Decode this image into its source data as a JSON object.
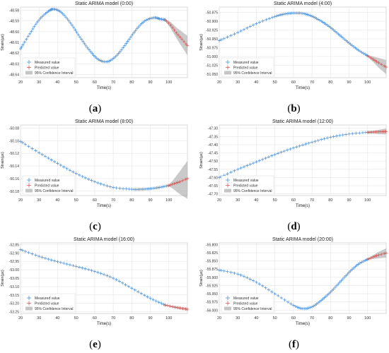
{
  "chart_data": [
    {
      "type": "scatter",
      "caption": "a",
      "title": "Static ARIMA model (0:00)",
      "xlabel": "Time(s)",
      "ylabel": "Strain(με)",
      "xlim": [
        20,
        110
      ],
      "ylim": [
        -48.643,
        -48.577
      ],
      "xticks": [
        20,
        30,
        40,
        50,
        60,
        70,
        80,
        90,
        100
      ],
      "yticks": [
        -48.58,
        -48.59,
        -48.6,
        -48.61,
        -48.62,
        -48.63,
        -48.64
      ],
      "ytick_labels": [
        "-48.58",
        "-48.59",
        "-48.60",
        "-48.61",
        "-48.62",
        "-48.63",
        "-48.64"
      ],
      "legend_position": "bottom-left",
      "legend": [
        "Measured value",
        "Predicted value",
        "95% Confidence Interval"
      ],
      "series": [
        {
          "name": "Measured value",
          "color": "#4a90d9",
          "x": [
            20,
            25,
            30,
            35,
            38,
            42,
            47,
            52,
            57,
            62,
            67,
            72,
            77,
            82,
            87,
            92,
            95,
            98
          ],
          "y": [
            -48.616,
            -48.602,
            -48.589,
            -48.581,
            -48.579,
            -48.582,
            -48.592,
            -48.605,
            -48.617,
            -48.626,
            -48.628,
            -48.622,
            -48.611,
            -48.599,
            -48.59,
            -48.587,
            -48.588,
            -48.589
          ]
        },
        {
          "name": "Predicted value",
          "color": "#d9534f",
          "x": [
            98,
            101,
            104,
            107,
            110
          ],
          "y": [
            -48.589,
            -48.594,
            -48.601,
            -48.607,
            -48.613
          ]
        }
      ],
      "confidence_interval": {
        "x": [
          98,
          101,
          104,
          107,
          110
        ],
        "lower": [
          -48.59,
          -48.597,
          -48.606,
          -48.614,
          -48.622
        ],
        "upper": [
          -48.588,
          -48.591,
          -48.596,
          -48.6,
          -48.604
        ]
      }
    },
    {
      "type": "scatter",
      "caption": "b",
      "title": "Static ARIMA model (4:00)",
      "xlabel": "Time(s)",
      "ylabel": "Strain(με)",
      "xlim": [
        20,
        110
      ],
      "ylim": [
        -51.06,
        -50.86
      ],
      "xticks": [
        20,
        30,
        40,
        50,
        60,
        70,
        80,
        90,
        100
      ],
      "yticks": [
        -50.875,
        -50.9,
        -50.925,
        -50.95,
        -50.975,
        -51.0,
        -51.025,
        -51.05
      ],
      "ytick_labels": [
        "-50.875",
        "-50.900",
        "-50.925",
        "-50.950",
        "-50.975",
        "-51.000",
        "-51.025",
        "-51.050"
      ],
      "legend_position": "bottom-left",
      "legend": [
        "Measured value",
        "Predicted value",
        "95% Confidence Interval"
      ],
      "series": [
        {
          "name": "Measured value",
          "color": "#4a90d9",
          "x": [
            20,
            30,
            40,
            50,
            55,
            60,
            65,
            70,
            75,
            80,
            85,
            90,
            95,
            100
          ],
          "y": [
            -50.955,
            -50.932,
            -50.907,
            -50.887,
            -50.88,
            -50.877,
            -50.878,
            -50.886,
            -50.9,
            -50.918,
            -50.94,
            -50.962,
            -50.982,
            -50.998
          ]
        },
        {
          "name": "Predicted value",
          "color": "#d9534f",
          "x": [
            100,
            103,
            106,
            110
          ],
          "y": [
            -50.998,
            -51.008,
            -51.018,
            -51.03
          ]
        }
      ],
      "confidence_interval": {
        "x": [
          100,
          103,
          106,
          110
        ],
        "lower": [
          -51.0,
          -51.016,
          -51.032,
          -51.05
        ],
        "upper": [
          -50.996,
          -51.0,
          -51.004,
          -51.01
        ]
      }
    },
    {
      "type": "scatter",
      "caption": "c",
      "title": "Static ARIMA model (8:00)",
      "xlabel": "Time(s)",
      "ylabel": "Strain(με)",
      "xlim": [
        20,
        110
      ],
      "ylim": [
        -50.187,
        -50.075
      ],
      "xticks": [
        20,
        30,
        40,
        50,
        60,
        70,
        80,
        90,
        100
      ],
      "yticks": [
        -50.08,
        -50.1,
        -50.12,
        -50.14,
        -50.16,
        -50.18
      ],
      "ytick_labels": [
        "-50.08",
        "-50.10",
        "-50.12",
        "-50.14",
        "-50.16",
        "-50.18"
      ],
      "legend_position": "bottom-left",
      "legend": [
        "Measured value",
        "Predicted value",
        "95% Confidence Interval"
      ],
      "series": [
        {
          "name": "Measured value",
          "color": "#4a90d9",
          "x": [
            20,
            30,
            40,
            50,
            60,
            70,
            80,
            85,
            90,
            95,
            100
          ],
          "y": [
            -50.101,
            -50.119,
            -50.136,
            -50.152,
            -50.165,
            -50.174,
            -50.177,
            -50.177,
            -50.176,
            -50.174,
            -50.171
          ]
        },
        {
          "name": "Predicted value",
          "color": "#d9534f",
          "x": [
            100,
            103,
            106,
            110
          ],
          "y": [
            -50.171,
            -50.168,
            -50.165,
            -50.16
          ]
        }
      ],
      "confidence_interval": {
        "x": [
          100,
          103,
          106,
          110
        ],
        "lower": [
          -50.172,
          -50.178,
          -50.185,
          -50.192
        ],
        "upper": [
          -50.17,
          -50.16,
          -50.148,
          -50.132
        ]
      }
    },
    {
      "type": "scatter",
      "caption": "d",
      "title": "Static ARIMA model (12:00)",
      "xlabel": "Time(s)",
      "ylabel": "Strain(με)",
      "xlim": [
        20,
        110
      ],
      "ylim": [
        -47.71,
        -47.28
      ],
      "xticks": [
        20,
        30,
        40,
        50,
        60,
        70,
        80,
        90,
        100
      ],
      "yticks": [
        -47.3,
        -47.35,
        -47.4,
        -47.45,
        -47.5,
        -47.55,
        -47.6,
        -47.65,
        -47.7
      ],
      "ytick_labels": [
        "-47.30",
        "-47.35",
        "-47.40",
        "-47.45",
        "-47.50",
        "-47.55",
        "-47.60",
        "-47.65",
        "-47.70"
      ],
      "legend_position": "bottom-left",
      "legend": [
        "Measured value",
        "Predicted value",
        "95% Confidence Interval"
      ],
      "series": [
        {
          "name": "Measured value",
          "color": "#4a90d9",
          "x": [
            20,
            30,
            40,
            50,
            60,
            70,
            80,
            90,
            100
          ],
          "y": [
            -47.6,
            -47.55,
            -47.505,
            -47.46,
            -47.42,
            -47.385,
            -47.355,
            -47.335,
            -47.325
          ]
        },
        {
          "name": "Predicted value",
          "color": "#d9534f",
          "x": [
            100,
            105,
            110
          ],
          "y": [
            -47.325,
            -47.322,
            -47.32
          ]
        }
      ],
      "confidence_interval": {
        "x": [
          100,
          105,
          110
        ],
        "lower": [
          -47.33,
          -47.334,
          -47.338
        ],
        "upper": [
          -47.32,
          -47.311,
          -47.302
        ]
      }
    },
    {
      "type": "scatter",
      "caption": "e",
      "title": "Static ARIMA model (16:00)",
      "xlabel": "Time(s)",
      "ylabel": "Strain(με)",
      "xlim": [
        20,
        110
      ],
      "ylim": [
        -53.26,
        -52.84
      ],
      "xticks": [
        20,
        30,
        40,
        50,
        60,
        70,
        80,
        90,
        100
      ],
      "yticks": [
        -52.85,
        -52.9,
        -52.95,
        -53.0,
        -53.05,
        -53.1,
        -53.15,
        -53.2,
        -53.25
      ],
      "ytick_labels": [
        "-52.85",
        "-52.90",
        "-52.95",
        "-53.00",
        "-53.05",
        "-53.10",
        "-53.15",
        "-53.20",
        "-53.25"
      ],
      "legend_position": "bottom-left",
      "legend": [
        "Measured value",
        "Predicted value",
        "95% Confidence Interval"
      ],
      "series": [
        {
          "name": "Measured value",
          "color": "#4a90d9",
          "x": [
            20,
            30,
            40,
            50,
            60,
            70,
            80,
            90,
            98
          ],
          "y": [
            -52.88,
            -52.92,
            -52.952,
            -52.98,
            -53.01,
            -53.05,
            -53.11,
            -53.17,
            -53.21
          ]
        },
        {
          "name": "Predicted value",
          "color": "#d9534f",
          "x": [
            98,
            102,
            106,
            110
          ],
          "y": [
            -53.21,
            -53.22,
            -53.228,
            -53.235
          ]
        }
      ],
      "confidence_interval": {
        "x": [
          98,
          102,
          106,
          110
        ],
        "lower": [
          -53.212,
          -53.225,
          -53.236,
          -53.245
        ],
        "upper": [
          -53.208,
          -53.215,
          -53.22,
          -53.225
        ]
      }
    },
    {
      "type": "scatter",
      "caption": "f",
      "title": "Static ARIMA model (20:00)",
      "xlabel": "Time(s)",
      "ylabel": "Strain(με)",
      "xlim": [
        20,
        110
      ],
      "ylim": [
        -56.01,
        -55.795
      ],
      "xticks": [
        20,
        30,
        40,
        50,
        60,
        70,
        80,
        90,
        100
      ],
      "yticks": [
        -55.8,
        -55.825,
        -55.85,
        -55.875,
        -55.9,
        -55.925,
        -55.95,
        -55.975,
        -56.0
      ],
      "ytick_labels": [
        "-55.800",
        "-55.825",
        "-55.850",
        "-55.875",
        "-55.900",
        "-55.925",
        "-55.950",
        "-55.975",
        "-56.000"
      ],
      "legend_position": "bottom-left",
      "legend": [
        "Measured value",
        "Predicted value",
        "95% Confidence Interval"
      ],
      "series": [
        {
          "name": "Measured value",
          "color": "#4a90d9",
          "x": [
            20,
            30,
            40,
            50,
            60,
            65,
            70,
            75,
            80,
            85,
            90,
            95,
            100
          ],
          "y": [
            -55.878,
            -55.89,
            -55.915,
            -55.95,
            -55.985,
            -55.995,
            -55.99,
            -55.97,
            -55.945,
            -55.915,
            -55.885,
            -55.86,
            -55.845
          ]
        },
        {
          "name": "Predicted value",
          "color": "#d9534f",
          "x": [
            100,
            103,
            106,
            110
          ],
          "y": [
            -55.845,
            -55.838,
            -55.832,
            -55.826
          ]
        }
      ],
      "confidence_interval": {
        "x": [
          100,
          103,
          106,
          110
        ],
        "lower": [
          -55.847,
          -55.844,
          -55.842,
          -55.84
        ],
        "upper": [
          -55.843,
          -55.832,
          -55.822,
          -55.812
        ]
      }
    }
  ]
}
